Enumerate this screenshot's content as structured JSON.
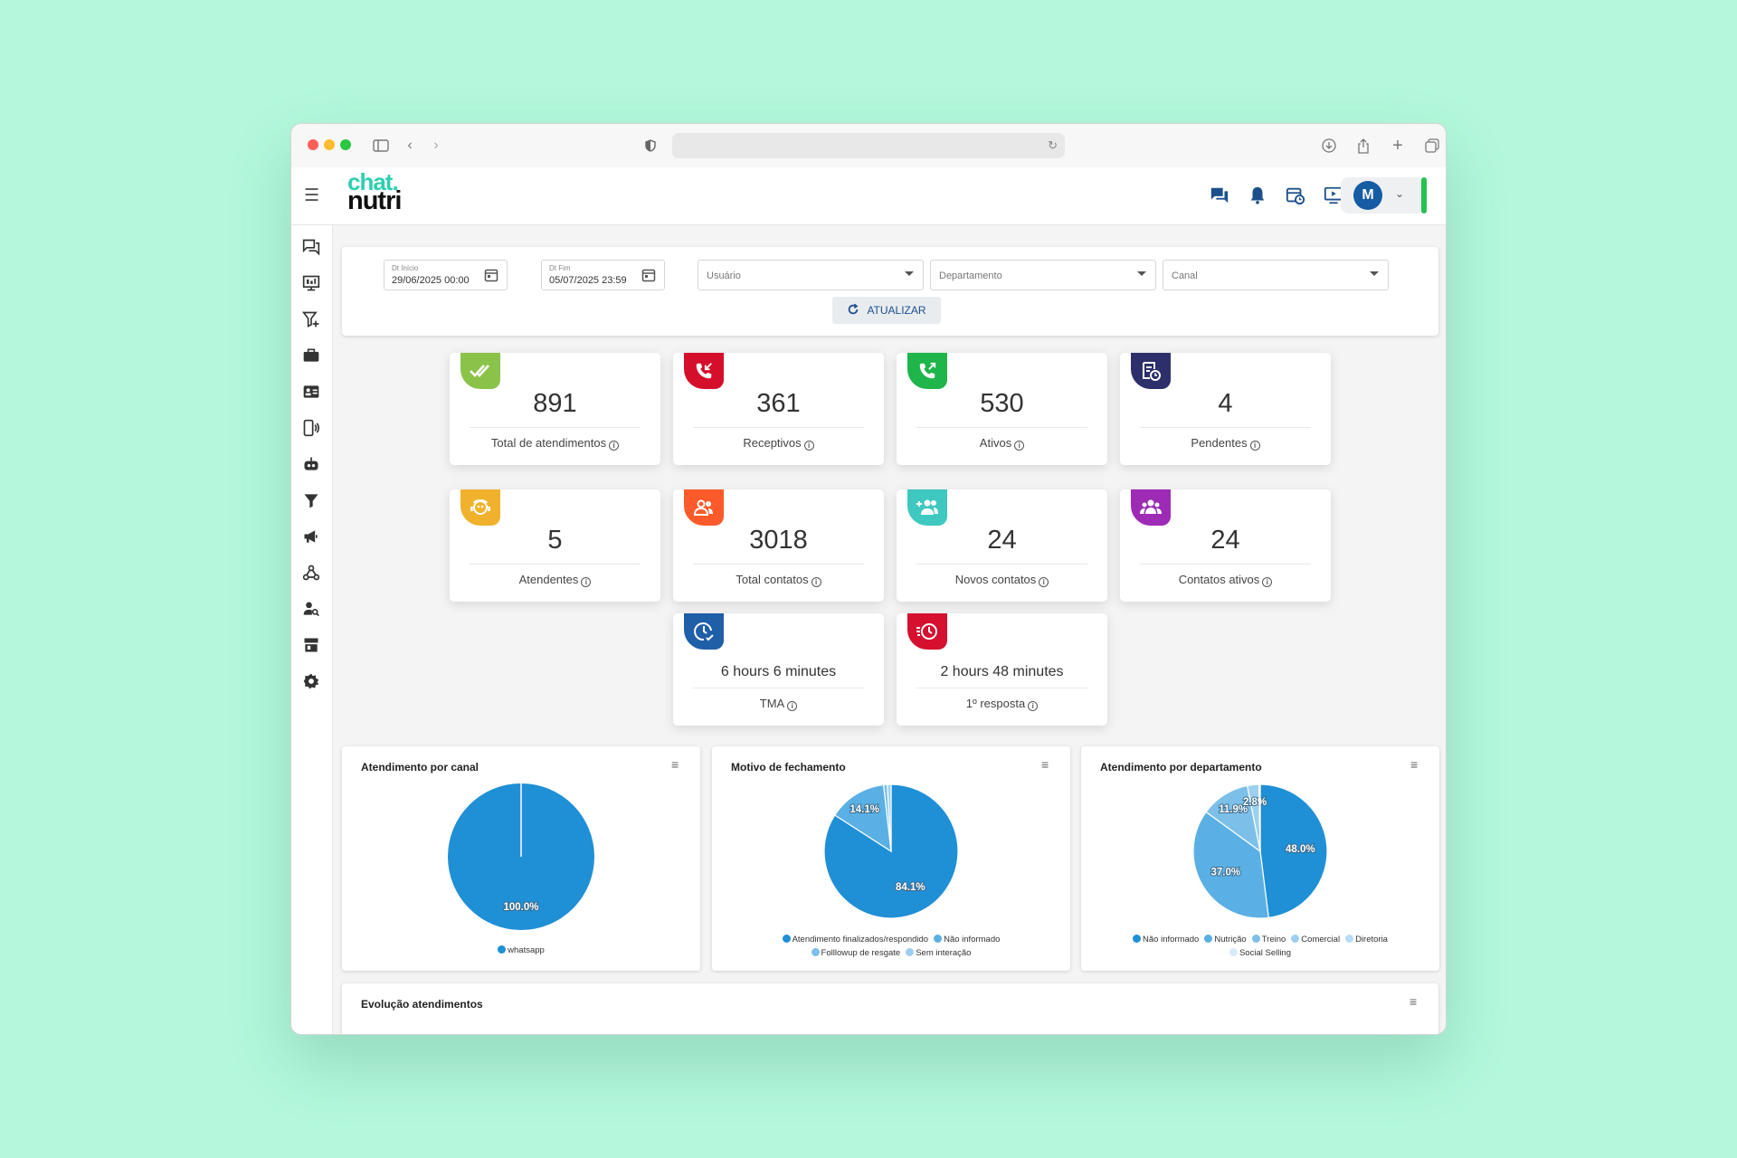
{
  "header": {
    "logo_line1": "chat.",
    "logo_line2": "nutri",
    "avatar_letter": "M"
  },
  "filters": {
    "start_label": "Dt Início",
    "start_value": "29/06/2025 00:00",
    "end_label": "Dt Fim",
    "end_value": "05/07/2025 23:59",
    "user_placeholder": "Usuário",
    "department_placeholder": "Departamento",
    "channel_placeholder": "Canal",
    "update_label": "ATUALIZAR"
  },
  "stats": {
    "total": {
      "value": "891",
      "label": "Total de atendimentos"
    },
    "receptive": {
      "value": "361",
      "label": "Receptivos"
    },
    "active": {
      "value": "530",
      "label": "Ativos"
    },
    "pending": {
      "value": "4",
      "label": "Pendentes"
    },
    "agents": {
      "value": "5",
      "label": "Atendentes"
    },
    "total_contacts": {
      "value": "3018",
      "label": "Total contatos"
    },
    "new_contacts": {
      "value": "24",
      "label": "Novos contatos"
    },
    "active_contacts": {
      "value": "24",
      "label": "Contatos ativos"
    },
    "tma": {
      "value": "6 hours 6 minutes",
      "label": "TMA"
    },
    "first_response": {
      "value": "2 hours 48 minutes",
      "label": "1º resposta"
    }
  },
  "colors": {
    "green": "#8bc34a",
    "red": "#d50f2b",
    "green2": "#1fb54a",
    "navy": "#2d2f6b",
    "amber": "#f0b22d",
    "orange": "#fb5b2a",
    "teal": "#3fc8bf",
    "purple": "#9d2bb5",
    "blue": "#1f5fa8",
    "crimson": "#d6102f",
    "slice1": "#1f8fd6",
    "slice2": "#5ab0e4",
    "slice3": "#7cc0ea",
    "slice4": "#9dd0f0",
    "slice5": "#b7dcf3",
    "slice6": "#d6ecf8"
  },
  "chart_data": [
    {
      "type": "pie",
      "title": "Atendimento por canal",
      "categories": [
        "whatsapp"
      ],
      "values": [
        100.0
      ]
    },
    {
      "type": "pie",
      "title": "Motivo de fechamento",
      "categories": [
        "Atendimento finalizados/respondido",
        "Não informado",
        "Folllowup de resgate",
        "Sem interação"
      ],
      "values": [
        84.1,
        14.1,
        0.9,
        0.9
      ]
    },
    {
      "type": "pie",
      "title": "Atendimento por departamento",
      "categories": [
        "Não informado",
        "Nutrição",
        "Treino",
        "Comercial",
        "Diretoria",
        "Social Selling"
      ],
      "values": [
        48.0,
        37.0,
        11.9,
        2.8,
        0.2,
        0.1
      ]
    }
  ],
  "evolution": {
    "title": "Evolução atendimentos"
  }
}
